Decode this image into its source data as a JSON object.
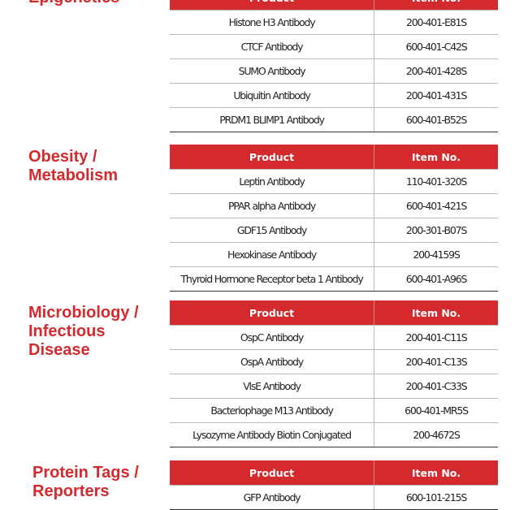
{
  "sections": [
    {
      "title": [
        "Epigenetics"
      ],
      "header": [
        "Product",
        "Item No."
      ],
      "rows": [
        [
          "Histone H3 Antibody",
          "200-401-E81S"
        ],
        [
          "CTCF Antibody",
          "600-401-C42S"
        ],
        [
          "SUMO Antibody",
          "200-401-428S"
        ],
        [
          "Ubiquitin Antibody",
          "200-401-431S"
        ],
        [
          "PRDM1 BLIMP1 Antibody",
          "600-401-B52S"
        ]
      ]
    },
    {
      "title": [
        "Obesity /",
        "Metabolism"
      ],
      "header": [
        "Product",
        "Item No."
      ],
      "rows": [
        [
          "Leptin Antibody",
          "110-401-320S"
        ],
        [
          "PPAR alpha Antibody",
          "600-401-421S"
        ],
        [
          "GDF15 Antibody",
          "200-301-B07S"
        ],
        [
          "Hexokinase Antibody",
          "200-4159S"
        ],
        [
          "Thyroid Hormone Receptor beta 1 Antibody",
          "600-401-A96S"
        ]
      ]
    },
    {
      "title": [
        "Microbiology /",
        "Infectious",
        "Disease"
      ],
      "header": [
        "Product",
        "Item No."
      ],
      "rows": [
        [
          "OspC Antibody",
          "200-401-C11S"
        ],
        [
          "OspA Antibody",
          "200-401-C13S"
        ],
        [
          "VlsE Antibody",
          "200-401-C33S"
        ],
        [
          "Bacteriophage M13 Antibody",
          "600-401-MR5S"
        ],
        [
          "Lysozyme Antibody Biotin Conjugated",
          "200-4672S"
        ]
      ]
    },
    {
      "title": [
        "Protein Tags /",
        "Reporters"
      ],
      "header": [
        "Product",
        "Item No."
      ],
      "rows": [
        [
          "GFP Antibody",
          "600-101-215S"
        ]
      ]
    }
  ]
}
